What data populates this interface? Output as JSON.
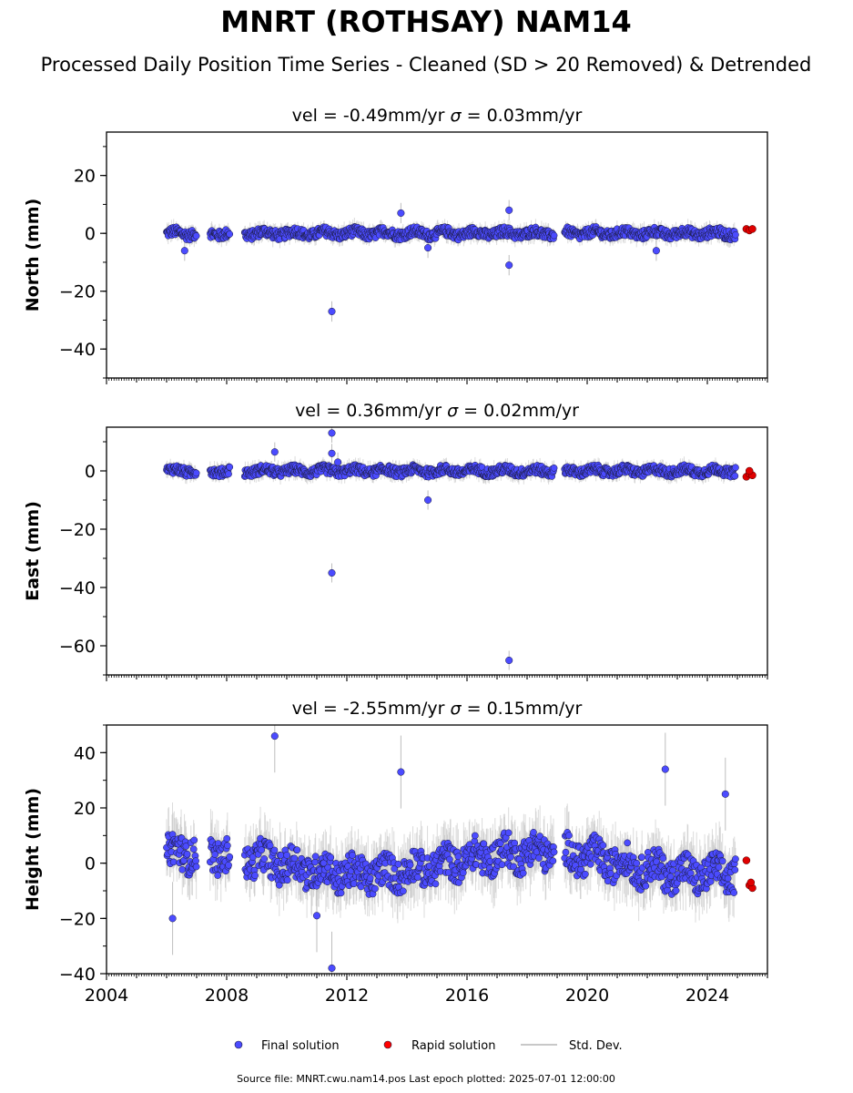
{
  "title": "MNRT (ROTHSAY) NAM14",
  "subtitle": "Processed Daily Position Time Series - Cleaned (SD > 20 Removed) & Detrended",
  "footer": "Source file: MNRT.cwu.nam14.pos  Last epoch plotted: 2025-07-01 12:00:00",
  "legend": [
    {
      "label": "Final solution",
      "color": "#4b4bff"
    },
    {
      "label": "Rapid solution",
      "color": "#ff0000"
    },
    {
      "label": "Std. Dev.",
      "color": "#c8c8c8"
    }
  ],
  "colors": {
    "final": "#4b4bff",
    "rapid": "#e00000",
    "stddev": "#bdbdbd",
    "edge": "#1a1a3a"
  },
  "chart_data": [
    {
      "type": "scatter",
      "title_prefix": "vel = -0.49mm/yr",
      "title_suffix": "= 0.03mm/yr",
      "title_symbol": "σ",
      "ylabel": "North (mm)",
      "xlim": [
        2004,
        2026
      ],
      "ylim": [
        -50,
        35
      ],
      "yticks": [
        20,
        0,
        -20,
        -40
      ],
      "xticks": [
        2004,
        2008,
        2012,
        2016,
        2020,
        2024
      ],
      "show_xtick_labels": false,
      "band": 1.6,
      "noise_amp": 0.9,
      "segments": [
        [
          2006.0,
          2007.0
        ],
        [
          2007.45,
          2008.1
        ],
        [
          2008.6,
          2018.9
        ],
        [
          2019.25,
          2024.95
        ]
      ],
      "outliers": [
        [
          2011.5,
          -27
        ],
        [
          2017.4,
          -11
        ],
        [
          2017.4,
          8
        ],
        [
          2013.8,
          7
        ],
        [
          2006.6,
          -6
        ],
        [
          2014.7,
          -5
        ],
        [
          2022.3,
          -6
        ]
      ],
      "rapid": [
        [
          2025.3,
          1.5
        ],
        [
          2025.4,
          1.0
        ],
        [
          2025.5,
          1.5
        ]
      ],
      "series": [
        {
          "name": "Final solution"
        },
        {
          "name": "Rapid solution"
        }
      ]
    },
    {
      "type": "scatter",
      "title_prefix": "vel = 0.36mm/yr",
      "title_suffix": "= 0.02mm/yr",
      "title_symbol": "σ",
      "ylabel": "East (mm)",
      "xlim": [
        2004,
        2026
      ],
      "ylim": [
        -70,
        15
      ],
      "yticks": [
        0,
        -20,
        -40,
        -60
      ],
      "xticks": [
        2004,
        2008,
        2012,
        2016,
        2020,
        2024
      ],
      "show_xtick_labels": false,
      "band": 1.5,
      "noise_amp": 0.8,
      "segments": [
        [
          2006.0,
          2007.0
        ],
        [
          2007.45,
          2008.1
        ],
        [
          2008.6,
          2018.9
        ],
        [
          2019.25,
          2024.95
        ]
      ],
      "outliers": [
        [
          2011.5,
          -35
        ],
        [
          2011.5,
          13
        ],
        [
          2011.5,
          6
        ],
        [
          2009.6,
          6.5
        ],
        [
          2014.7,
          -10
        ],
        [
          2017.4,
          -65
        ],
        [
          2011.7,
          3
        ]
      ],
      "rapid": [
        [
          2025.3,
          -2.0
        ],
        [
          2025.4,
          -1.0
        ],
        [
          2025.5,
          -1.5
        ],
        [
          2025.4,
          0.0
        ]
      ],
      "series": [
        {
          "name": "Final solution"
        },
        {
          "name": "Rapid solution"
        }
      ]
    },
    {
      "type": "scatter",
      "title_prefix": "vel = -2.55mm/yr",
      "title_suffix": "= 0.15mm/yr",
      "title_symbol": "σ",
      "ylabel": "Height (mm)",
      "xlim": [
        2004,
        2026
      ],
      "ylim": [
        -40,
        50
      ],
      "yticks": [
        40,
        20,
        0,
        -20,
        -40
      ],
      "xticks": [
        2004,
        2008,
        2012,
        2016,
        2020,
        2024
      ],
      "show_xtick_labels": true,
      "band": 6,
      "noise_amp": 3,
      "segments": [
        [
          2006.0,
          2007.0
        ],
        [
          2007.45,
          2008.1
        ],
        [
          2008.6,
          2018.9
        ],
        [
          2019.25,
          2024.95
        ]
      ],
      "outliers": [
        [
          2009.6,
          46
        ],
        [
          2013.8,
          33
        ],
        [
          2011.5,
          -38
        ],
        [
          2022.6,
          34
        ],
        [
          2011.0,
          -19
        ],
        [
          2006.2,
          -20
        ],
        [
          2024.6,
          25
        ]
      ],
      "rapid": [
        [
          2025.3,
          1.0
        ],
        [
          2025.4,
          -8.0
        ],
        [
          2025.5,
          -9.0
        ],
        [
          2025.45,
          -7.0
        ]
      ],
      "series": [
        {
          "name": "Final solution"
        },
        {
          "name": "Rapid solution"
        }
      ]
    }
  ]
}
